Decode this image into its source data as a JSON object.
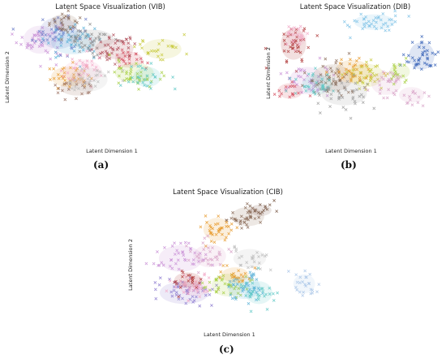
{
  "chart_data": [
    {
      "type": "scatter",
      "title": "Latent Space Visualization (VIB)",
      "xlabel": "Latent Dimension 1",
      "ylabel": "Latent Dimension 2",
      "caption": "(a)",
      "marker": "x",
      "grid": false,
      "legend": "none",
      "xlim": [
        0,
        100
      ],
      "ylim": [
        0,
        100
      ],
      "clusters": [
        {
          "cx": 12,
          "cy": 80,
          "sx": 6,
          "sy": 7,
          "n": 45,
          "color": "#c98fd6"
        },
        {
          "cx": 22,
          "cy": 85,
          "sx": 7,
          "sy": 8,
          "n": 50,
          "color": "#6f7fc9"
        },
        {
          "cx": 25,
          "cy": 93,
          "sx": 5,
          "sy": 4,
          "n": 25,
          "color": "#8c6d5a"
        },
        {
          "cx": 30,
          "cy": 78,
          "sx": 8,
          "sy": 6,
          "n": 40,
          "color": "#5ab0d8"
        },
        {
          "cx": 40,
          "cy": 80,
          "sx": 8,
          "sy": 5,
          "n": 40,
          "color": "#8c8c8c"
        },
        {
          "cx": 52,
          "cy": 73,
          "sx": 7,
          "sy": 5,
          "n": 40,
          "color": "#b04f5a"
        },
        {
          "cx": 60,
          "cy": 65,
          "sx": 5,
          "sy": 4,
          "n": 20,
          "color": "#d45060"
        },
        {
          "cx": 78,
          "cy": 73,
          "sx": 7,
          "sy": 5,
          "n": 25,
          "color": "#c7c93a"
        },
        {
          "cx": 63,
          "cy": 55,
          "sx": 7,
          "sy": 5,
          "n": 40,
          "color": "#a6cf3f"
        },
        {
          "cx": 70,
          "cy": 52,
          "sx": 5,
          "sy": 5,
          "n": 25,
          "color": "#5ec8c6"
        },
        {
          "cx": 27,
          "cy": 52,
          "sx": 6,
          "sy": 5,
          "n": 35,
          "color": "#e89a2c"
        },
        {
          "cx": 35,
          "cy": 56,
          "sx": 7,
          "sy": 6,
          "n": 35,
          "color": "#f2a9c8"
        },
        {
          "cx": 32,
          "cy": 44,
          "sx": 6,
          "sy": 4,
          "n": 20,
          "color": "#9a7060"
        },
        {
          "cx": 38,
          "cy": 50,
          "sx": 7,
          "sy": 6,
          "n": 25,
          "color": "#bdbdbd"
        }
      ]
    },
    {
      "type": "scatter",
      "title": "Latent Space Visualization (DIB)",
      "xlabel": "Latent Dimension 1",
      "ylabel": "Latent Dimension 2",
      "caption": "(b)",
      "marker": "x",
      "grid": false,
      "legend": "none",
      "xlim": [
        0,
        100
      ],
      "ylim": [
        0,
        100
      ],
      "clusters": [
        {
          "cx": 60,
          "cy": 93,
          "sx": 8,
          "sy": 4,
          "n": 40,
          "color": "#7ec2e6"
        },
        {
          "cx": 88,
          "cy": 67,
          "sx": 5,
          "sy": 7,
          "n": 40,
          "color": "#3a64b8"
        },
        {
          "cx": 12,
          "cy": 76,
          "sx": 5,
          "sy": 8,
          "n": 40,
          "color": "#b03a3a"
        },
        {
          "cx": 14,
          "cy": 82,
          "sx": 4,
          "sy": 5,
          "n": 20,
          "color": "#f2a9c8"
        },
        {
          "cx": 20,
          "cy": 48,
          "sx": 7,
          "sy": 7,
          "n": 40,
          "color": "#c98fd6"
        },
        {
          "cx": 35,
          "cy": 50,
          "sx": 8,
          "sy": 7,
          "n": 50,
          "color": "#8c6d5a"
        },
        {
          "cx": 47,
          "cy": 55,
          "sx": 7,
          "sy": 6,
          "n": 40,
          "color": "#e89a2c"
        },
        {
          "cx": 55,
          "cy": 52,
          "sx": 7,
          "sy": 6,
          "n": 35,
          "color": "#c7c93a"
        },
        {
          "cx": 26,
          "cy": 45,
          "sx": 6,
          "sy": 5,
          "n": 30,
          "color": "#5ec8c6"
        },
        {
          "cx": 67,
          "cy": 46,
          "sx": 6,
          "sy": 6,
          "n": 30,
          "color": "#d8a3c8"
        },
        {
          "cx": 75,
          "cy": 55,
          "sx": 4,
          "sy": 4,
          "n": 15,
          "color": "#a6cf3f"
        },
        {
          "cx": 42,
          "cy": 38,
          "sx": 9,
          "sy": 6,
          "n": 40,
          "color": "#9e9e9e"
        },
        {
          "cx": 10,
          "cy": 40,
          "sx": 5,
          "sy": 4,
          "n": 15,
          "color": "#d45060"
        },
        {
          "cx": 82,
          "cy": 37,
          "sx": 5,
          "sy": 4,
          "n": 15,
          "color": "#d8a3c8"
        }
      ]
    },
    {
      "type": "scatter",
      "title": "Latent Space Visualization (CIB)",
      "xlabel": "Latent Dimension 1",
      "ylabel": "Latent Dimension 2",
      "caption": "(c)",
      "marker": "x",
      "grid": false,
      "legend": "none",
      "xlim": [
        0,
        100
      ],
      "ylim": [
        0,
        100
      ],
      "clusters": [
        {
          "cx": 57,
          "cy": 88,
          "sx": 6,
          "sy": 5,
          "n": 35,
          "color": "#8c6d5a"
        },
        {
          "cx": 64,
          "cy": 93,
          "sx": 4,
          "sy": 3,
          "n": 15,
          "color": "#7a5a48"
        },
        {
          "cx": 40,
          "cy": 78,
          "sx": 5,
          "sy": 6,
          "n": 35,
          "color": "#e89a2c"
        },
        {
          "cx": 20,
          "cy": 55,
          "sx": 8,
          "sy": 7,
          "n": 40,
          "color": "#c98fd6"
        },
        {
          "cx": 36,
          "cy": 57,
          "sx": 6,
          "sy": 6,
          "n": 30,
          "color": "#d8a3c8"
        },
        {
          "cx": 58,
          "cy": 55,
          "sx": 6,
          "sy": 5,
          "n": 25,
          "color": "#bdbdbd"
        },
        {
          "cx": 22,
          "cy": 28,
          "sx": 9,
          "sy": 6,
          "n": 50,
          "color": "#8c7ad0"
        },
        {
          "cx": 28,
          "cy": 33,
          "sx": 6,
          "sy": 5,
          "n": 35,
          "color": "#f2a9c8"
        },
        {
          "cx": 24,
          "cy": 38,
          "sx": 5,
          "sy": 4,
          "n": 20,
          "color": "#b03a3a"
        },
        {
          "cx": 46,
          "cy": 34,
          "sx": 6,
          "sy": 6,
          "n": 35,
          "color": "#a6cf3f"
        },
        {
          "cx": 55,
          "cy": 32,
          "sx": 6,
          "sy": 6,
          "n": 40,
          "color": "#5ab0d8"
        },
        {
          "cx": 63,
          "cy": 28,
          "sx": 5,
          "sy": 6,
          "n": 30,
          "color": "#5ec8c6"
        },
        {
          "cx": 50,
          "cy": 42,
          "sx": 5,
          "sy": 4,
          "n": 20,
          "color": "#e89a2c"
        },
        {
          "cx": 88,
          "cy": 35,
          "sx": 4,
          "sy": 5,
          "n": 25,
          "color": "#a9c6e8"
        }
      ]
    }
  ]
}
